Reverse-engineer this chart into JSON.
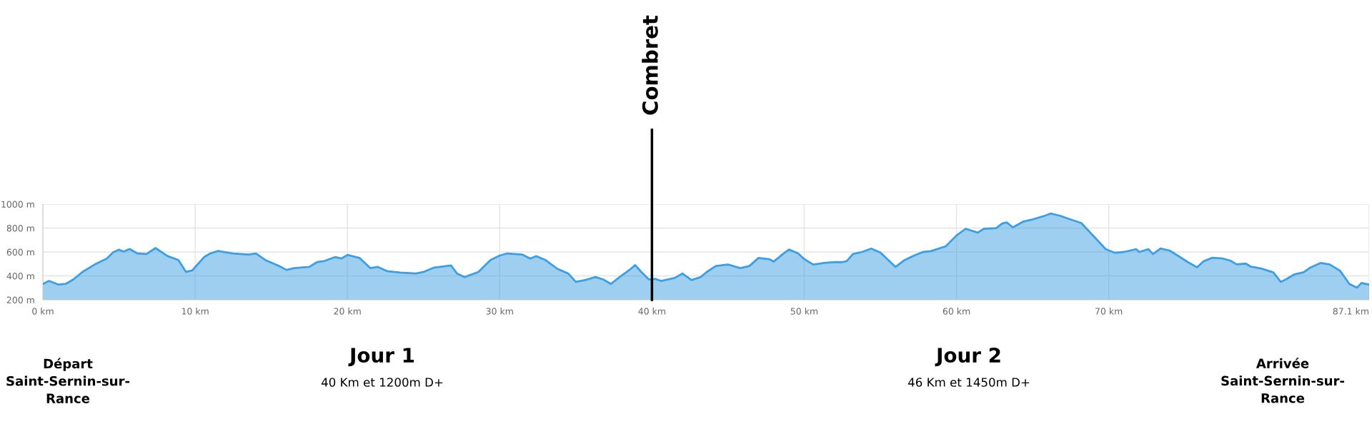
{
  "chart_data": {
    "type": "area",
    "x": [
      0,
      0.4,
      1.0,
      1.5,
      2.0,
      2.6,
      3.4,
      4.0,
      4.2,
      4.6,
      5.0,
      5.3,
      5.7,
      6.2,
      6.8,
      7.4,
      8.2,
      8.9,
      9.4,
      9.8,
      10.6,
      11,
      11.5,
      12.5,
      13.5,
      14,
      14.6,
      15.5,
      16.0,
      16.5,
      17.5,
      18.0,
      18.5,
      19.2,
      19.6,
      20,
      20.8,
      21.5,
      22.0,
      22.6,
      23.5,
      24.5,
      25,
      25.7,
      26.8,
      27.2,
      27.7,
      28.6,
      29.4,
      30,
      30.5,
      31.5,
      32,
      32.4,
      33.0,
      33.8,
      34.5,
      35.0,
      35.6,
      36.3,
      36.8,
      37.3,
      37.8,
      38.6,
      38.9,
      39.3,
      39.8,
      40.2,
      40.6,
      41.5,
      42.0,
      42.6,
      43.2,
      43.6,
      44.2,
      45,
      45.8,
      46.4,
      47,
      47.7,
      48.0,
      48.6,
      49,
      49.6,
      50,
      50.6,
      51.3,
      52,
      52.5,
      52.8,
      53.2,
      53.8,
      54.4,
      55.0,
      56.0,
      56.6,
      57.3,
      57.8,
      58.3,
      59.3,
      60,
      60.6,
      61.4,
      61.8,
      62.6,
      63.0,
      63.3,
      63.7,
      64.4,
      65.0,
      65.8,
      66.2,
      66.8,
      67.6,
      68.2,
      69,
      69.8,
      70.4,
      71.0,
      71.8,
      72.0,
      72.6,
      72.9,
      73.4,
      74,
      74.6,
      75.2,
      75.8,
      76.2,
      76.8,
      77.5,
      78,
      78.4,
      79,
      79.3,
      80,
      80.8,
      81.3,
      81.6,
      82.2,
      82.8,
      83.2,
      83.9,
      84.5,
      85.2,
      85.8,
      86.3,
      86.6,
      87.1
    ],
    "series": [
      {
        "color": "#3d9fe3",
        "values": [
          333,
          358,
          328,
          333,
          370,
          433,
          495,
          533,
          545,
          595,
          620,
          603,
          625,
          588,
          583,
          633,
          565,
          533,
          433,
          445,
          558,
          588,
          608,
          588,
          578,
          588,
          533,
          483,
          450,
          465,
          475,
          515,
          525,
          558,
          545,
          575,
          550,
          465,
          475,
          440,
          428,
          420,
          433,
          470,
          488,
          420,
          390,
          433,
          533,
          570,
          588,
          578,
          545,
          565,
          533,
          458,
          420,
          350,
          365,
          390,
          370,
          333,
          383,
          458,
          490,
          433,
          370,
          375,
          358,
          383,
          420,
          365,
          390,
          433,
          483,
          495,
          465,
          483,
          550,
          540,
          520,
          583,
          620,
          588,
          540,
          495,
          508,
          515,
          515,
          525,
          583,
          600,
          628,
          595,
          475,
          533,
          575,
          600,
          607,
          648,
          738,
          794,
          762,
          794,
          799,
          838,
          847,
          806,
          855,
          872,
          903,
          922,
          903,
          867,
          842,
          733,
          624,
          593,
          600,
          624,
          600,
          624,
          583,
          629,
          612,
          564,
          515,
          472,
          520,
          552,
          545,
          527,
          496,
          503,
          479,
          462,
          430,
          350,
          369,
          413,
          430,
          467,
          508,
          496,
          442,
          333,
          302,
          341,
          327
        ]
      }
    ],
    "xlim": [
      0,
      87.1
    ],
    "xticks": [
      {
        "value": 0,
        "label": "0 km"
      },
      {
        "value": 10,
        "label": "10 km"
      },
      {
        "value": 20,
        "label": "20 km"
      },
      {
        "value": 30,
        "label": "30 km"
      },
      {
        "value": 40,
        "label": "40 km"
      },
      {
        "value": 50,
        "label": "50 km"
      },
      {
        "value": 60,
        "label": "60 km"
      },
      {
        "value": 70,
        "label": "70 km"
      },
      {
        "value": 87.1,
        "label": "87.1 km"
      }
    ],
    "ylim": [
      200,
      1000
    ],
    "yticks": [
      {
        "value": 200,
        "label": "200 m"
      },
      {
        "value": 400,
        "label": "400 m"
      },
      {
        "value": 600,
        "label": "600 m"
      },
      {
        "value": 800,
        "label": "800 m"
      },
      {
        "value": 1000,
        "label": "1000 m"
      }
    ],
    "grid": true,
    "ref_lines": [
      {
        "axis": "x",
        "value": 40,
        "label": "Combret",
        "color": "#000000"
      }
    ],
    "annotations": [
      "Départ\nSaint-Sernin-sur-\nRance",
      "Jour 1",
      "40 Km et 1200m D+",
      "Jour 2",
      "46 Km et 1450m D+",
      "Arrivée\nSaint-Sernin-sur-\nRance"
    ]
  }
}
